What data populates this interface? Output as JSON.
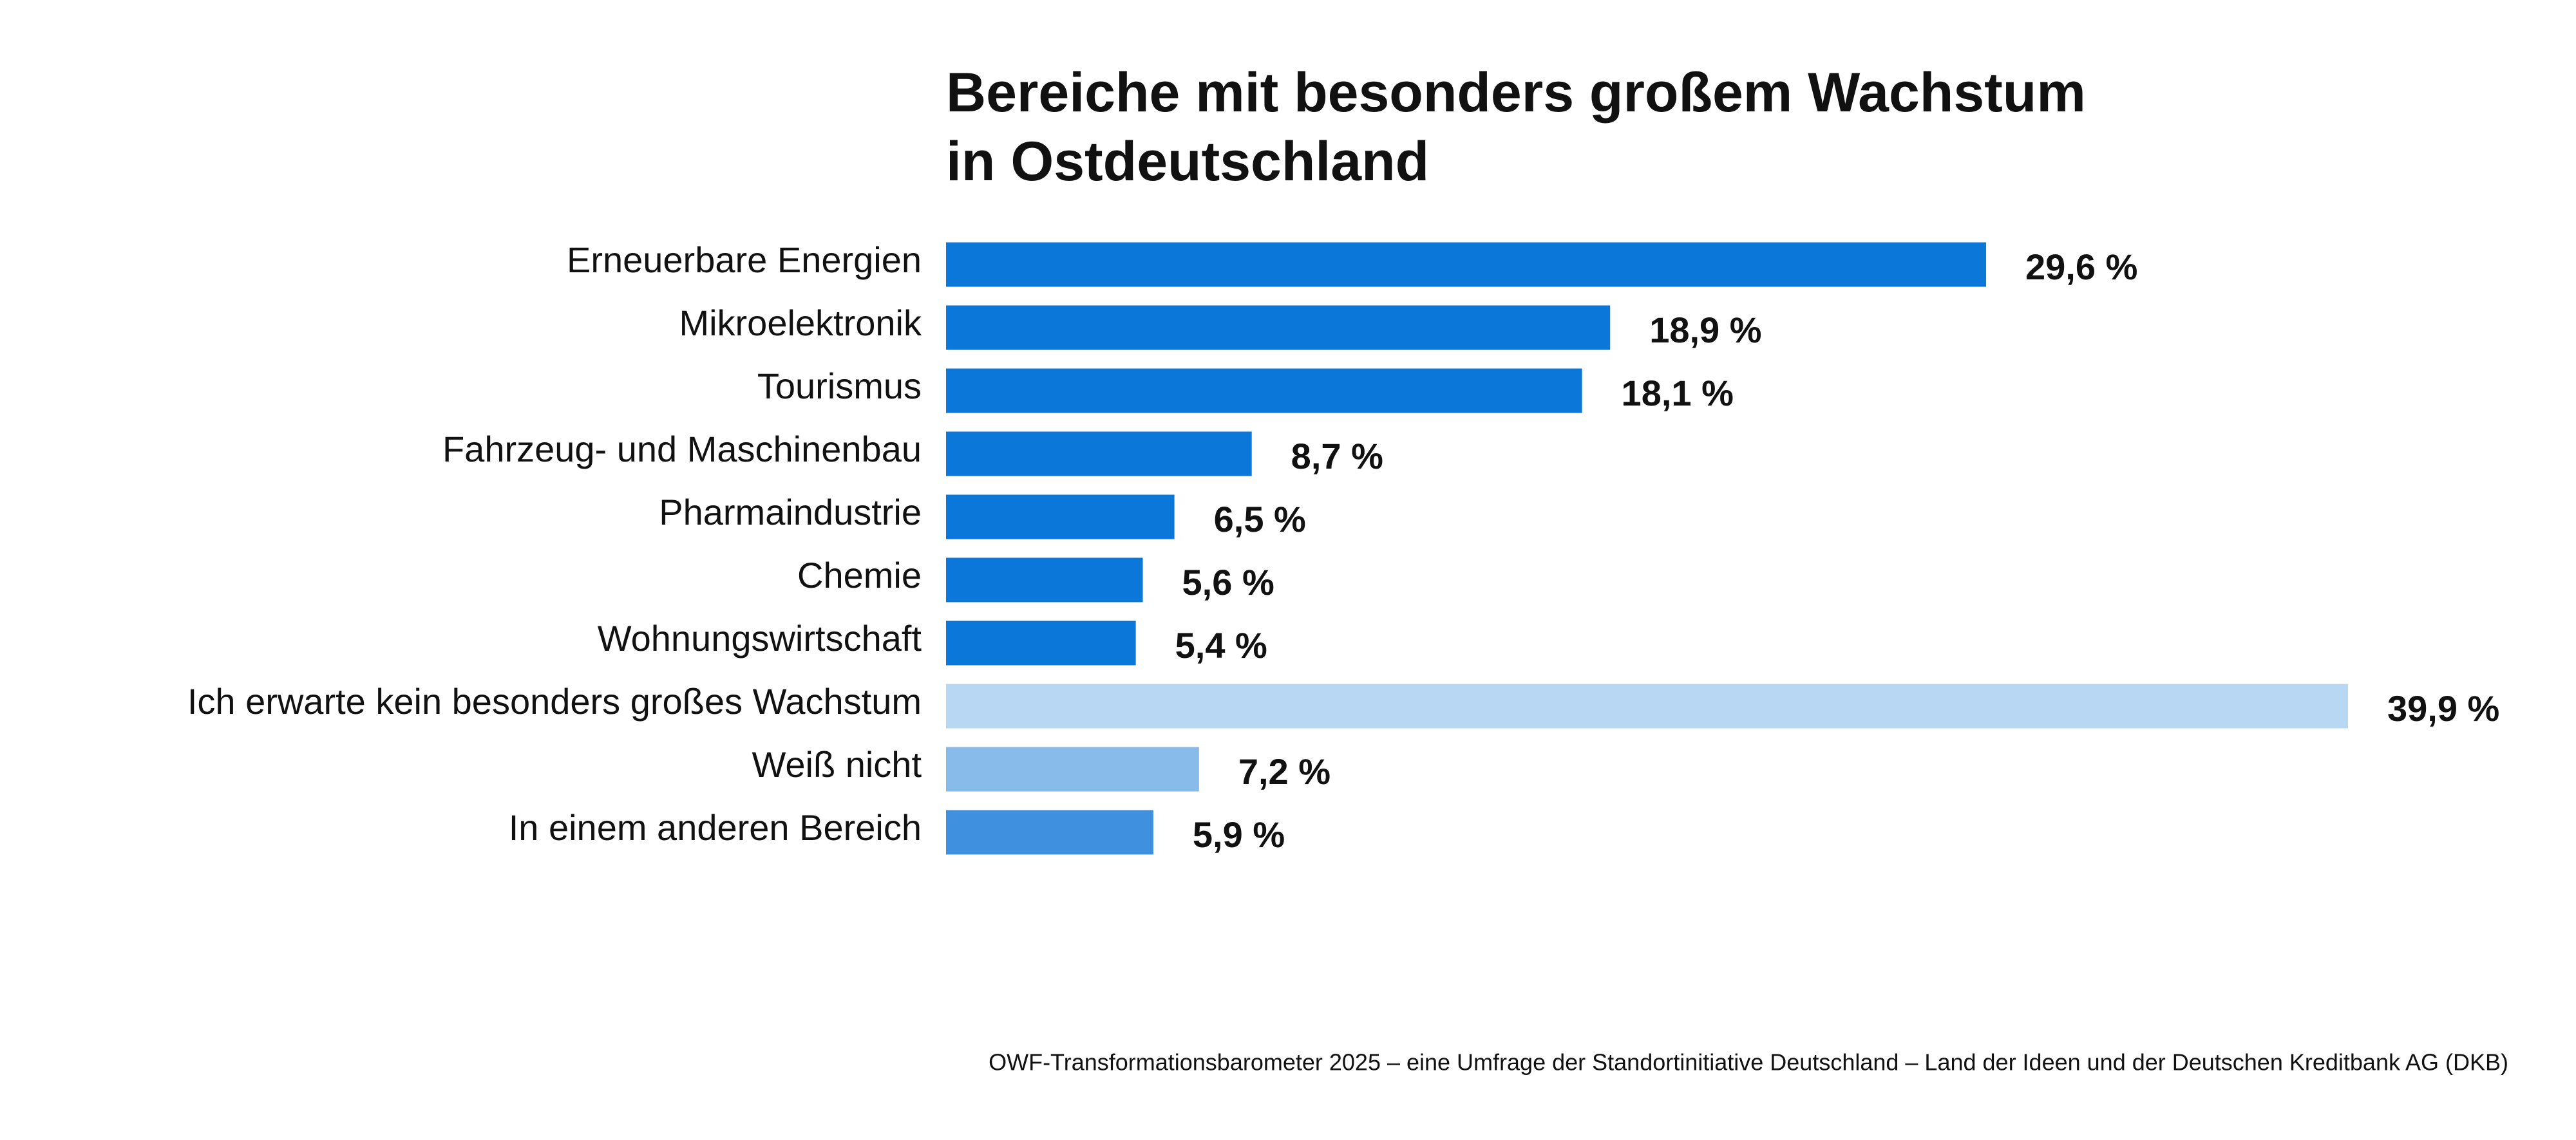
{
  "chart_data": {
    "type": "bar",
    "orientation": "horizontal",
    "title": "Bereiche mit besonders großem Wachstum in Ostdeutschland",
    "categories": [
      "Erneuerbare Energien",
      "Mikroelektronik",
      "Tourismus",
      "Fahrzeug- und Maschinenbau",
      "Pharmaindustrie",
      "Chemie",
      "Wohnungswirtschaft",
      "Ich erwarte kein besonders großes Wachstum",
      "Weiß nicht",
      "In einem anderen Bereich"
    ],
    "values": [
      29.6,
      18.9,
      18.1,
      8.7,
      6.5,
      5.6,
      5.4,
      39.9,
      7.2,
      5.9
    ],
    "value_labels": [
      "29,6 %",
      "18,9 %",
      "18,1 %",
      "8,7 %",
      "6,5 %",
      "5,6 %",
      "5,4 %",
      "39,9 %",
      "7,2 %",
      "5,9 %"
    ],
    "colors": [
      "#0b77d8",
      "#0b77d8",
      "#0b77d8",
      "#0b77d8",
      "#0b77d8",
      "#0b77d8",
      "#0b77d8",
      "#b8d7f3",
      "#88bbea",
      "#3f91e0"
    ],
    "source": "OWF-Transformationsbarometer 2025 – eine Umfrage der Standortinitiative Deutschland – Land der Ideen und der Deutschen Kreditbank AG (DKB)"
  }
}
